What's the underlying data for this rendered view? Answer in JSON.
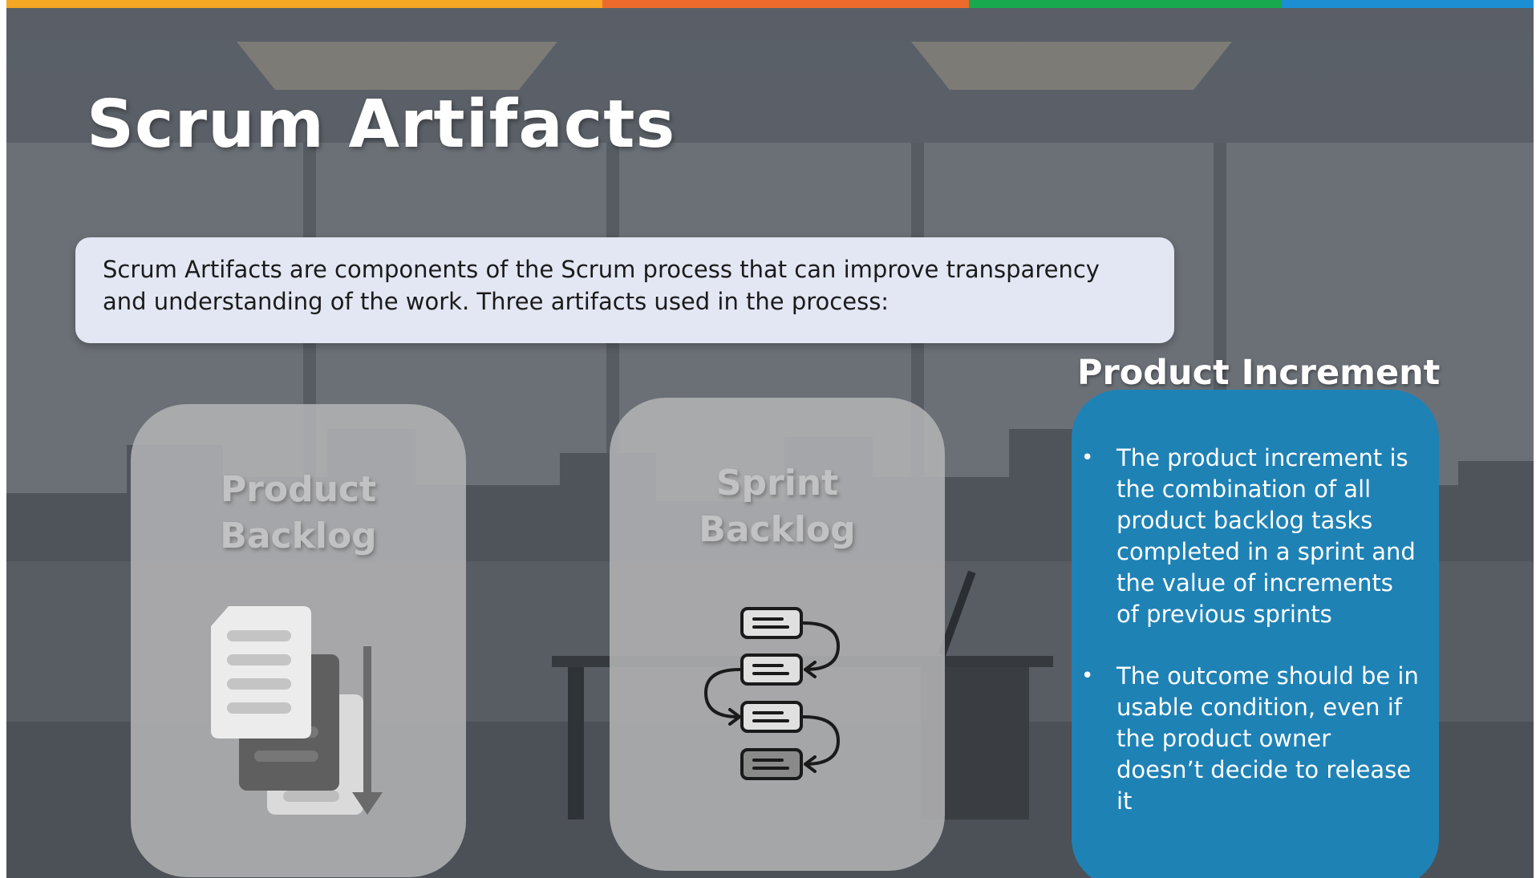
{
  "slide": {
    "title": "Scrum Artifacts",
    "intro": "Scrum Artifacts are components of the Scrum process that can improve transparency and understanding of the work. Three artifacts used in the process:"
  },
  "cards": [
    {
      "title_line1": "Product",
      "title_line2": "Backlog",
      "icon": "documents-sorted-icon"
    },
    {
      "title_line1": "Sprint",
      "title_line2": "Backlog",
      "icon": "task-flow-icon"
    }
  ],
  "increment": {
    "title": "Product Increment",
    "bullets": [
      "The product increment is the combination of all product backlog tasks completed in a sprint and the value of increments of previous sprints",
      "The outcome should be in usable condition, even if the product owner doesn’t decide to release it"
    ]
  },
  "colors": {
    "accent_bar": [
      "#f5a623",
      "#ec6a2c",
      "#18a84e",
      "#1b8fd2"
    ],
    "increment_card": "#1f82b5",
    "intro_box": "#e3e6f3"
  }
}
